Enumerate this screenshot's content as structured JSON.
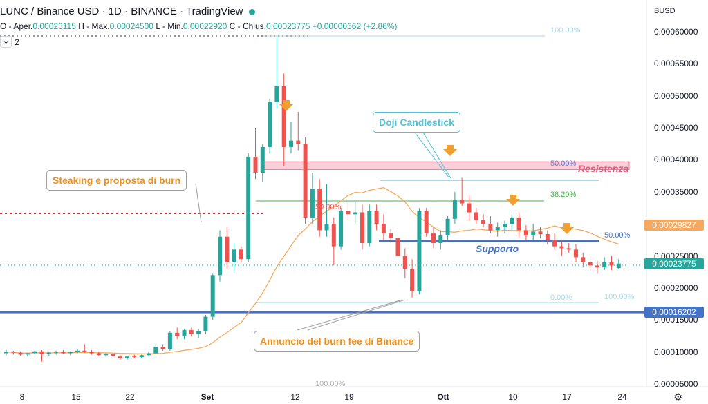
{
  "header": {
    "title": "LUNC / Binance USD · 1D · BINANCE · TradingView",
    "ohlc": {
      "open_label": "O - Aper.",
      "open": "0.00023115",
      "high_label": "H - Max.",
      "high": "0.00024500",
      "low_label": "L - Min.",
      "low": "0.00022920",
      "close_label": "C - Chius.",
      "close": "0.00023775",
      "change": "+0.00000662 (+2.86%)"
    },
    "indicator_count": "2"
  },
  "colors": {
    "up": "#26a69a",
    "down": "#ef5350",
    "ma": "#f5a85f",
    "support": "#4472c4",
    "fib": "#add8e6"
  },
  "annotations": {
    "staking": "Steaking e proposta di burn",
    "doji": "Doji Candlestick",
    "burn_fee": "Annuncio del burn fee di Binance",
    "resistenza": "Resistenza",
    "supporto": "Supporto"
  },
  "fib_labels": {
    "top_100": "100.00%",
    "right_50": "50.00%",
    "right_38": "38.20%",
    "left_50": "50.00%",
    "lower_50": "50.00%",
    "zero": "0.00%",
    "lower_100": "100.00%",
    "bottom_100": "100.00%"
  },
  "chart_data": {
    "type": "candlestick",
    "symbol": "LUNC / Binance USD",
    "interval": "1D",
    "currency": "BUSD",
    "y_range": [
      5e-05,
      0.00062
    ],
    "y_ticks": [
      "0.00060000",
      "0.00055000",
      "0.00050000",
      "0.00045000",
      "0.00040000",
      "0.00035000",
      "0.00030000",
      "0.00025000",
      "0.00020000",
      "0.00015000",
      "0.00010000",
      "0.00005000"
    ],
    "x_ticks": [
      "8",
      "15",
      "22",
      "Set",
      "12",
      "19",
      "Ott",
      "10",
      "17",
      "24"
    ],
    "price_badges": [
      {
        "value": "0.00029827",
        "color": "#f5a85f"
      },
      {
        "value": "0.00023775",
        "color": "#26a69a"
      },
      {
        "value": "0.00016202",
        "color": "#4472c4"
      }
    ],
    "levels": {
      "horizontal_support": 0.00016202,
      "support": 0.000275,
      "resistance_low": 0.000385,
      "resistance_high": 0.000397
    },
    "candles": [
      [
        9.8e-05,
        0.000103,
        9.5e-05,
        0.0001
      ],
      [
        0.0001,
        0.000102,
        9.6e-05,
        9.9e-05
      ],
      [
        9.9e-05,
        0.000101,
        9.4e-05,
        9.6e-05
      ],
      [
        9.6e-05,
        9.9e-05,
        9.3e-05,
        9.8e-05
      ],
      [
        9.8e-05,
        0.000102,
        9.6e-05,
        0.000101
      ],
      [
        0.000101,
        0.000103,
        8.5e-05,
        9.7e-05
      ],
      [
        9.7e-05,
        0.0001,
        9.4e-05,
        9.9e-05
      ],
      [
        9.9e-05,
        0.000102,
        9.6e-05,
        0.0001
      ],
      [
        0.0001,
        0.000103,
        9.7e-05,
        9.8e-05
      ],
      [
        9.8e-05,
        0.000101,
        9.5e-05,
        0.0001
      ],
      [
        0.0001,
        0.000104,
        9.8e-05,
        0.000102
      ],
      [
        0.000102,
        0.000112,
        9.9e-05,
        0.0001
      ],
      [
        0.0001,
        0.000103,
        9.6e-05,
        9.8e-05
      ],
      [
        9.8e-05,
        0.0001,
        9.3e-05,
        9.5e-05
      ],
      [
        9.5e-05,
        9.8e-05,
        9.2e-05,
        9.7e-05
      ],
      [
        9.7e-05,
        9.9e-05,
        9e-05,
        9.3e-05
      ],
      [
        9.3e-05,
        9.6e-05,
        8.8e-05,
        9e-05
      ],
      [
        9e-05,
        9.4e-05,
        8.8e-05,
        9.3e-05
      ],
      [
        9.3e-05,
        9.6e-05,
        9e-05,
        9.2e-05
      ],
      [
        9.2e-05,
        9.6e-05,
        9e-05,
        9.5e-05
      ],
      [
        9.5e-05,
        0.0001,
        9.3e-05,
        9.8e-05
      ],
      [
        9.8e-05,
        0.00011,
        9.6e-05,
        0.000108
      ],
      [
        0.000108,
        0.000112,
        0.000102,
        0.000104
      ],
      [
        0.000104,
        0.000132,
        0.000102,
        0.00013
      ],
      [
        0.00013,
        0.000138,
        0.00012,
        0.000125
      ],
      [
        0.000125,
        0.000136,
        0.00012,
        0.000134
      ],
      [
        0.000134,
        0.000138,
        0.000124,
        0.000128
      ],
      [
        0.000128,
        0.000136,
        0.000122,
        0.000132
      ],
      [
        0.000132,
        0.000158,
        0.000128,
        0.000155
      ],
      [
        0.000155,
        0.000222,
        0.00015,
        0.00022
      ],
      [
        0.00022,
        0.00029,
        0.00021,
        0.00028
      ],
      [
        0.00028,
        0.000295,
        0.00023,
        0.00024
      ],
      [
        0.00024,
        0.00027,
        0.000225,
        0.00026
      ],
      [
        0.00026,
        0.000265,
        0.00024,
        0.000245
      ],
      [
        0.000245,
        0.00041,
        0.00024,
        0.000405
      ],
      [
        0.000405,
        0.00045,
        0.00037,
        0.00038
      ],
      [
        0.00038,
        0.000425,
        0.000365,
        0.00042
      ],
      [
        0.00042,
        0.000495,
        0.00041,
        0.00049
      ],
      [
        0.00049,
        0.000593,
        0.00048,
        0.000515
      ],
      [
        0.000515,
        0.000535,
        0.00039,
        0.00042
      ],
      [
        0.00042,
        0.00046,
        0.00041,
        0.00043
      ],
      [
        0.00043,
        0.000475,
        0.000415,
        0.000425
      ],
      [
        0.000425,
        0.000435,
        0.0003,
        0.00031
      ],
      [
        0.00031,
        0.00038,
        0.0003,
        0.000355
      ],
      [
        0.000355,
        0.00037,
        0.00028,
        0.00029
      ],
      [
        0.00029,
        0.000362,
        0.00028,
        0.0003
      ],
      [
        0.0003,
        0.00031,
        0.000235,
        0.000265
      ],
      [
        0.000265,
        0.000325,
        0.00026,
        0.00032
      ],
      [
        0.00032,
        0.000338,
        0.000305,
        0.000315
      ],
      [
        0.000315,
        0.000335,
        0.0003,
        0.000318
      ],
      [
        0.000318,
        0.00033,
        0.00026,
        0.00027
      ],
      [
        0.00027,
        0.00033,
        0.000265,
        0.00032
      ],
      [
        0.00032,
        0.00033,
        0.00029,
        0.0003
      ],
      [
        0.0003,
        0.000315,
        0.000275,
        0.000285
      ],
      [
        0.000285,
        0.000292,
        0.00027,
        0.000278
      ],
      [
        0.000278,
        0.00029,
        0.00024,
        0.00025
      ],
      [
        0.00025,
        0.000262,
        0.000215,
        0.00023
      ],
      [
        0.00023,
        0.000245,
        0.000185,
        0.000195
      ],
      [
        0.000195,
        0.000325,
        0.00019,
        0.00032
      ],
      [
        0.00032,
        0.000325,
        0.00028,
        0.000285
      ],
      [
        0.000285,
        0.000295,
        0.000262,
        0.00027
      ],
      [
        0.00027,
        0.00029,
        0.00026,
        0.000282
      ],
      [
        0.000282,
        0.000312,
        0.000275,
        0.000308
      ],
      [
        0.000308,
        0.00035,
        0.0003,
        0.000338
      ],
      [
        0.000338,
        0.000372,
        0.000328,
        0.000332
      ],
      [
        0.000332,
        0.000345,
        0.000305,
        0.000318
      ],
      [
        0.000318,
        0.000325,
        0.0003,
        0.000306
      ],
      [
        0.000306,
        0.000315,
        0.000295,
        0.0003
      ],
      [
        0.0003,
        0.000312,
        0.000285,
        0.00029
      ],
      [
        0.00029,
        0.000302,
        0.00028,
        0.000295
      ],
      [
        0.000295,
        0.000305,
        0.000285,
        0.0003
      ],
      [
        0.0003,
        0.000315,
        0.00029,
        0.00031
      ],
      [
        0.00031,
        0.000318,
        0.00028,
        0.00029
      ],
      [
        0.00029,
        0.000298,
        0.000275,
        0.000282
      ],
      [
        0.000282,
        0.0003,
        0.000275,
        0.000288
      ],
      [
        0.000288,
        0.000295,
        0.000278,
        0.000284
      ],
      [
        0.000284,
        0.00029,
        0.000268,
        0.000275
      ],
      [
        0.000275,
        0.000285,
        0.00026,
        0.000265
      ],
      [
        0.000265,
        0.000272,
        0.00025,
        0.000262
      ],
      [
        0.000262,
        0.00027,
        0.000255,
        0.00026
      ],
      [
        0.00026,
        0.000268,
        0.00024,
        0.000248
      ],
      [
        0.000248,
        0.000255,
        0.000232,
        0.00024
      ],
      [
        0.00024,
        0.00025,
        0.000228,
        0.000235
      ],
      [
        0.000235,
        0.000242,
        0.000222,
        0.000232
      ],
      [
        0.000232,
        0.000248,
        0.000228,
        0.00024
      ],
      [
        0.00024,
        0.00025,
        0.000228,
        0.000235
      ],
      [
        0.000231,
        0.000245,
        0.000229,
        0.000238
      ]
    ]
  }
}
